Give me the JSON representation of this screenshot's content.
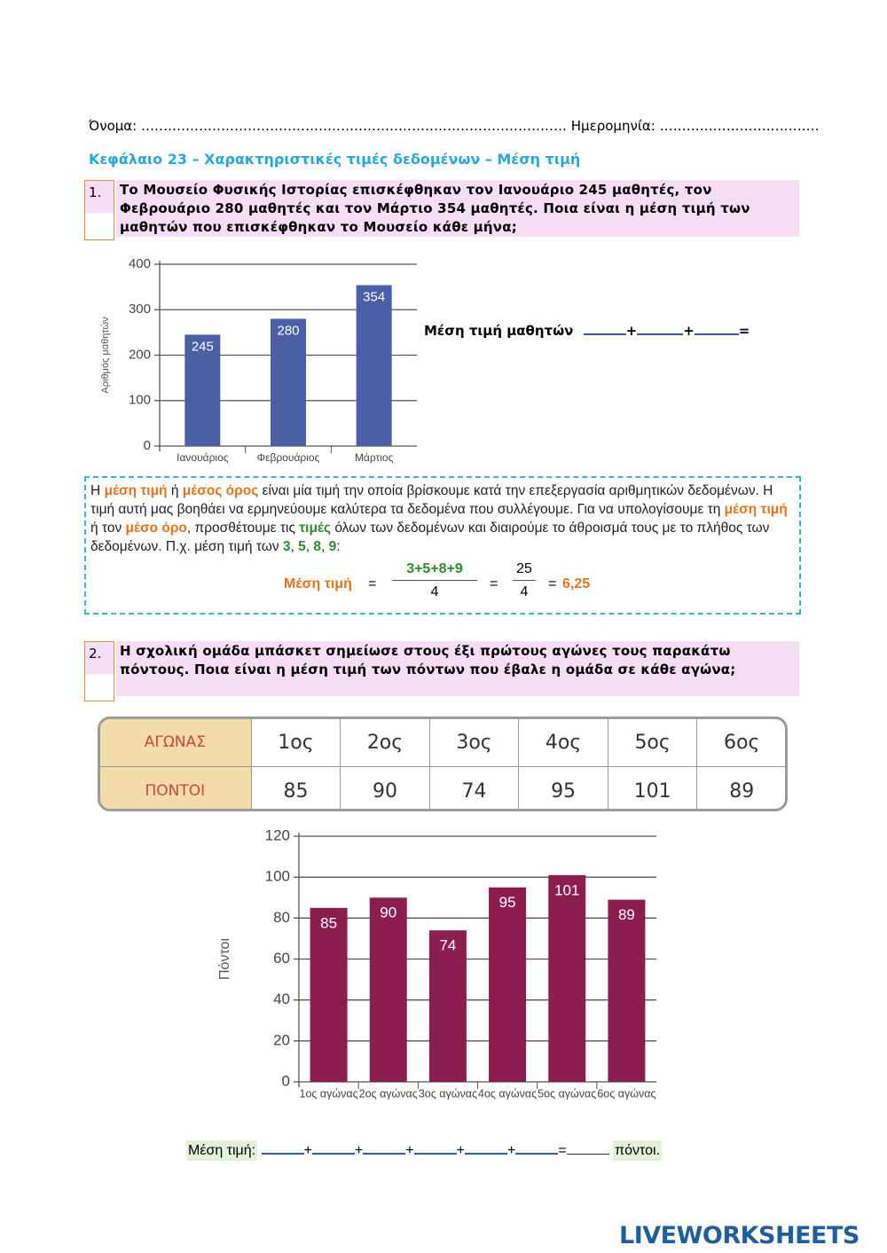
{
  "header": {
    "name_label": "Όνομα: ……………………………………………………………………………………",
    "date_label": "Ημερομηνία: ………………………………"
  },
  "title": "Κεφάλαιο 23 – Χαρακτηριστικές τιμές δεδομένων – Μέση τιμή",
  "q1": {
    "number": "1.",
    "text": "Το Μουσείο Φυσικής Ιστορίας επισκέφθηκαν τον Ιανουάριο 245 μαθητές, τον Φεβρουάριο 280 μαθητές και τον Μάρτιο 354 μαθητές. Ποια είναι η μέση τιμή των μαθητών που επισκέφθηκαν το Μουσείο κάθε μήνα;",
    "answer": {
      "label": "Μέση τιμή μαθητών",
      "plus": "+",
      "equals": "="
    }
  },
  "definition": {
    "text": [
      "Η ",
      "μέση τιμή",
      " ή ",
      "μέσος όρος",
      " είναι μία τιμή την οποία βρίσκουμε κατά την επεξεργασία αριθμητικών δεδομένων. Η τιμή αυτή μας βοηθάει να ερμηνεύουμε καλύτερα τα δεδομένα που συλλέγουμε. Για να υπολογίσουμε τη ",
      "μέση τιμή",
      " ή τον ",
      "μέσο όρο",
      ", προσθέτουμε τις ",
      "τιμές",
      " όλων των δεδομένων και διαιρούμε το άθροισμά τους με το πλήθος των δεδομένων. Π.χ. μέση τιμή των ",
      "3",
      ", ",
      "5",
      ", ",
      "8",
      ", ",
      "9",
      ":"
    ],
    "example": {
      "label": "Μέση τιμή",
      "equals": "=",
      "numerator": "3+5+8+9",
      "denominator": "4",
      "sum": "25",
      "count": "4",
      "result": "6,25"
    }
  },
  "q2": {
    "number": "2.",
    "text": "Η σχολική ομάδα μπάσκετ σημείωσε στους έξι πρώτους αγώνες τους παρακάτω πόντους. Ποια είναι η μέση τιμή των πόντων που έβαλε η ομάδα σε κάθε αγώνα;",
    "answer": {
      "label": "Μέση τιμή:",
      "plus": "+",
      "equals": "=",
      "unit": "πόντοι."
    }
  },
  "table": {
    "rows": [
      [
        "ΑΓΩΝΑΣ",
        "1ος",
        "2ος",
        "3ος",
        "4ος",
        "5ος",
        "6ος"
      ],
      [
        "ΠΟΝΤΟΙ",
        "85",
        "90",
        "74",
        "95",
        "101",
        "89"
      ]
    ]
  },
  "chart_data": [
    {
      "type": "bar",
      "y_label": "Αριθμός μαθητών",
      "categories": [
        "Ιανουάριος",
        "Φεβρουάριος",
        "Μάρτιος"
      ],
      "values": [
        245,
        280,
        354
      ],
      "color": "#4b5fa6",
      "ylim": [
        0,
        400
      ],
      "yticks": [
        0,
        100,
        200,
        300,
        400
      ],
      "grid": true
    },
    {
      "type": "bar",
      "y_label": "Πόντοι",
      "categories": [
        "1ος αγώνας",
        "2ος αγώνας",
        "3ος αγώνας",
        "4ος αγώνας",
        "5ος αγώνας",
        "6ος αγώνας"
      ],
      "values": [
        85,
        90,
        74,
        95,
        101,
        89
      ],
      "color": "#8c1d4f",
      "ylim": [
        0,
        120
      ],
      "yticks": [
        0,
        20,
        40,
        60,
        80,
        100,
        120
      ],
      "grid": true
    }
  ],
  "footer": {
    "brand": "LIVEWORKSHEETS"
  }
}
